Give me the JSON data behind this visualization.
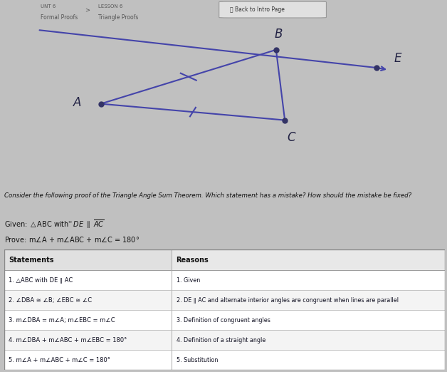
{
  "overall_bg": "#c0c0c0",
  "nav_bg": "#e8e8e8",
  "nav_text_color": "#555555",
  "blue_line_color": "#5555bb",
  "diagram_bg": "#c8c8c8",
  "triangle_color": "#4444aa",
  "point_color": "#333366",
  "label_color": "#222244",
  "question_bg": "#c8c8c8",
  "below_question_bg": "#d0d0d0",
  "table_bg": "#ffffff",
  "table_header_bg": "#e8e8e8",
  "table_line_color": "#aaaaaa",
  "points": {
    "A": [
      0.22,
      0.5
    ],
    "B": [
      0.62,
      0.83
    ],
    "C": [
      0.64,
      0.4
    ],
    "D": [
      0.08,
      0.95
    ],
    "E": [
      0.85,
      0.72
    ]
  },
  "col_split": 0.38,
  "nav_items": {
    "unit": "UNT 6",
    "formal": "Formal Proofs",
    "lesson": "LESSON 6",
    "triangle": "Triangle Proofs",
    "button": "Back to Intro Page"
  },
  "question_text": "Consider the following proof of the Triangle Angle Sum Theorem. Which statement has a mistake? How should the mistake be fixed?",
  "row_statements": [
    "1. △ABC with DE ∥ AC",
    "2. ∠DBA ≅ ∠B; ∠EBC ≅ ∠C",
    "3. m∠DBA = m∠A; m∠EBC = m∠C",
    "4. m∠DBA + m∠ABC + m∠EBC = 180°",
    "5. m∠A + m∠ABC + m∠C = 180°"
  ],
  "row_reasons": [
    "1. Given",
    "2. DE ∥ AC and alternate interior angles are congruent when lines are parallel",
    "3. Definition of congruent angles",
    "4. Definition of a straight angle",
    "5. Substitution"
  ]
}
